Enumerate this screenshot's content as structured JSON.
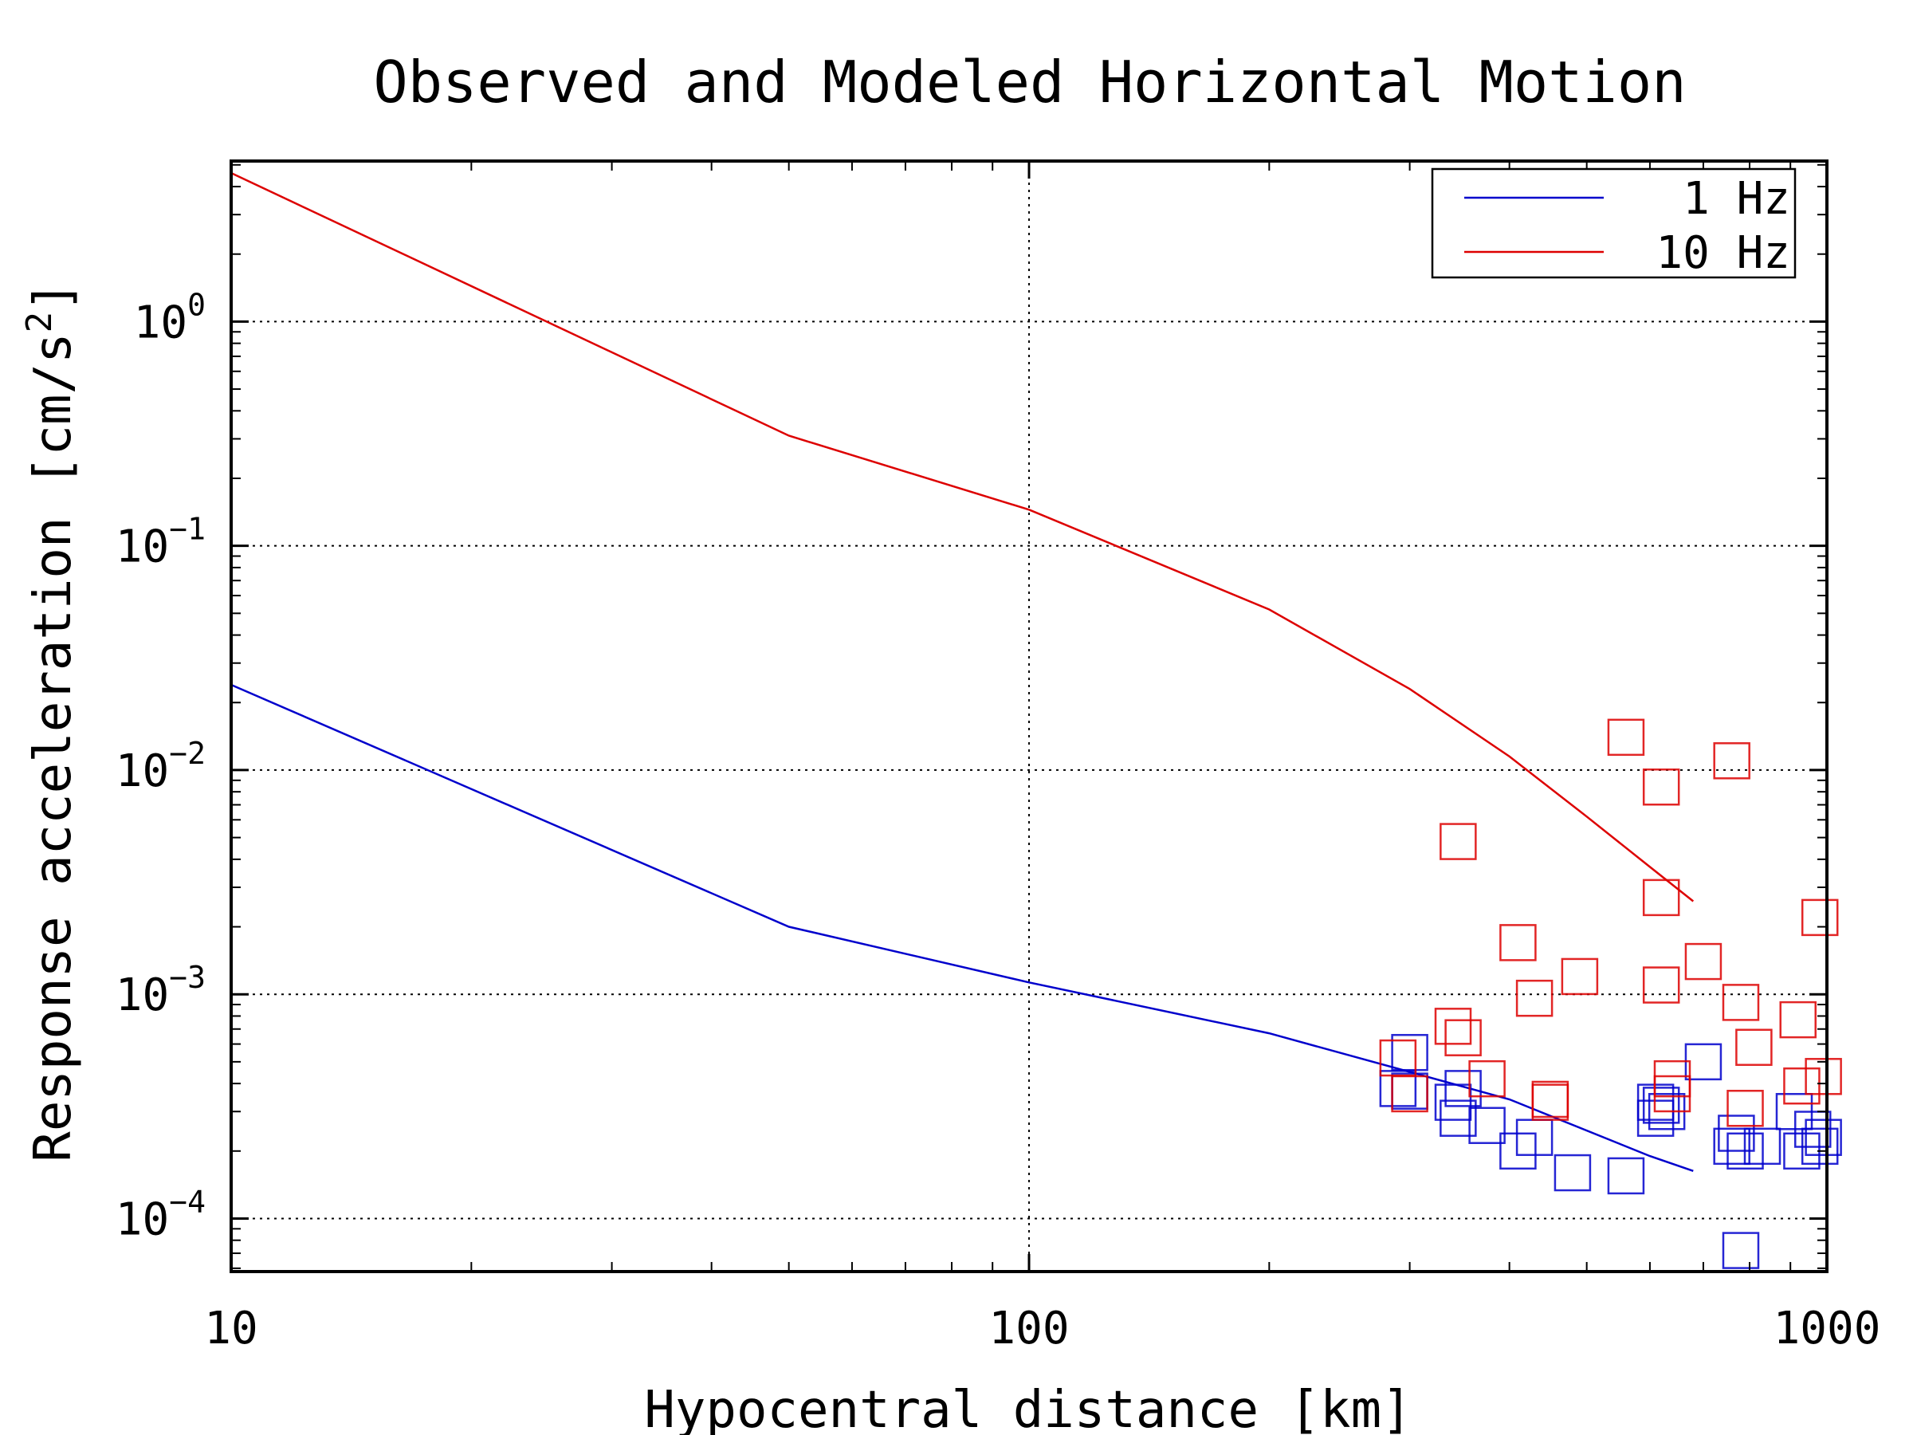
{
  "chart_data": {
    "type": "scatter",
    "title": "Observed and Modeled Horizontal Motion",
    "xlabel": "Hypocentral distance [km]",
    "ylabel": "Response acceleration [cm/s",
    "ylabel_sup": "2",
    "ylabel_end": "]",
    "xscale": "log",
    "yscale": "log",
    "xlim": [
      10,
      1000
    ],
    "ylim": [
      5.8e-05,
      5.2
    ],
    "grid": true,
    "legend_position": "top-right",
    "x_ticks": [
      {
        "value": 10,
        "label": "10"
      },
      {
        "value": 100,
        "label": "100"
      },
      {
        "value": 1000,
        "label": "1000"
      }
    ],
    "y_ticks": [
      {
        "value": 1,
        "base": "10",
        "exp": "0"
      },
      {
        "value": 0.1,
        "base": "10",
        "exp": "−1"
      },
      {
        "value": 0.01,
        "base": "10",
        "exp": "−2"
      },
      {
        "value": 0.001,
        "base": "10",
        "exp": "−3"
      },
      {
        "value": 0.0001,
        "base": "10",
        "exp": "−4"
      }
    ],
    "series": [
      {
        "name": "1 Hz",
        "color": "#0000cc",
        "model_line": [
          [
            10,
            0.024
          ],
          [
            50,
            0.002
          ],
          [
            100,
            0.00113
          ],
          [
            200,
            0.00067
          ],
          [
            400,
            0.00034
          ],
          [
            600,
            0.00019
          ],
          [
            680,
            0.000163
          ]
        ],
        "observations": [
          [
            290,
            0.00038
          ],
          [
            300,
            0.00055
          ],
          [
            300,
            0.00037
          ],
          [
            340,
            0.00033
          ],
          [
            345,
            0.00028
          ],
          [
            350,
            0.00038
          ],
          [
            375,
            0.00026
          ],
          [
            410,
            0.0002
          ],
          [
            430,
            0.00023
          ],
          [
            480,
            0.00016
          ],
          [
            560,
            0.000155
          ],
          [
            610,
            0.00033
          ],
          [
            610,
            0.00028
          ],
          [
            620,
            0.00032
          ],
          [
            630,
            0.0003
          ],
          [
            700,
            0.0005
          ],
          [
            760,
            0.00021
          ],
          [
            770,
            0.00024
          ],
          [
            780,
            7.2e-05
          ],
          [
            790,
            0.0002
          ],
          [
            830,
            0.00021
          ],
          [
            910,
            0.0003
          ],
          [
            930,
            0.0002
          ],
          [
            960,
            0.00025
          ],
          [
            980,
            0.00021
          ],
          [
            990,
            0.00023
          ]
        ]
      },
      {
        "name": "10 Hz",
        "color": "#dd0000",
        "model_line": [
          [
            10,
            4.6
          ],
          [
            50,
            0.31
          ],
          [
            100,
            0.145
          ],
          [
            200,
            0.052
          ],
          [
            300,
            0.023
          ],
          [
            400,
            0.0115
          ],
          [
            500,
            0.0062
          ],
          [
            600,
            0.0037
          ],
          [
            680,
            0.0026
          ]
        ],
        "observations": [
          [
            290,
            0.00052
          ],
          [
            300,
            0.00036
          ],
          [
            340,
            0.00072
          ],
          [
            345,
            0.0048
          ],
          [
            350,
            0.00064
          ],
          [
            375,
            0.00042
          ],
          [
            410,
            0.0017
          ],
          [
            430,
            0.00096
          ],
          [
            450,
            0.00034
          ],
          [
            450,
            0.00033
          ],
          [
            490,
            0.0012
          ],
          [
            560,
            0.014
          ],
          [
            620,
            0.0011
          ],
          [
            620,
            0.0084
          ],
          [
            620,
            0.0027
          ],
          [
            640,
            0.00042
          ],
          [
            640,
            0.00036
          ],
          [
            700,
            0.0014
          ],
          [
            760,
            0.011
          ],
          [
            780,
            0.00092
          ],
          [
            790,
            0.00031
          ],
          [
            810,
            0.00058
          ],
          [
            920,
            0.00077
          ],
          [
            930,
            0.00039
          ],
          [
            980,
            0.0022
          ],
          [
            990,
            0.00043
          ]
        ]
      }
    ]
  }
}
